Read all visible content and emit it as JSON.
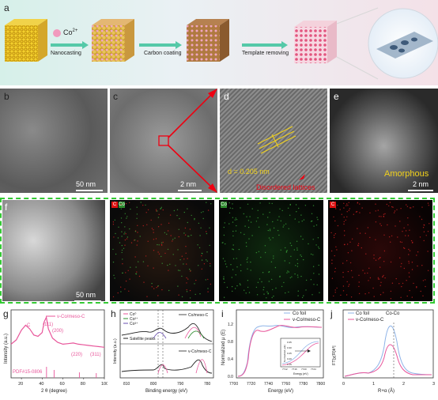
{
  "panels": {
    "a": "a",
    "b": "b",
    "c": "c",
    "d": "d",
    "e": "e",
    "f": "f",
    "g": "g",
    "h": "h",
    "i": "i",
    "j": "j"
  },
  "schematic": {
    "co_label": "Co",
    "co_charge": "2+",
    "steps": [
      "Nanocasting",
      "Carbon coating",
      "Template removing"
    ]
  },
  "tem": {
    "b_scale": "50 nm",
    "c_scale": "2 nm",
    "d_spacing": "d = 0.205 nm",
    "d_disorder": "Disordered lattices",
    "e_amorphous": "Amorphous",
    "e_scale": "2 nm",
    "f_scale": "50 nm"
  },
  "eds": {
    "co": "Co",
    "c": "C"
  },
  "colors": {
    "pink": "#e8559a",
    "green": "#2e8b2e",
    "red": "#d11",
    "purple": "#6a4fb0",
    "yellow": "#f2d21b",
    "dashgreen": "#34c934"
  },
  "chart_data": [
    {
      "type": "line",
      "panel": "g",
      "xlabel": "2 θ (degree)",
      "ylabel": "Intensity (a.u.)",
      "xlim": [
        10,
        100
      ],
      "xticks": [
        20,
        40,
        60,
        80,
        100
      ],
      "series": [
        {
          "name": "v-Co/meso-C",
          "x": [
            10,
            15,
            20,
            24,
            28,
            32,
            36,
            40,
            42,
            44,
            46,
            50,
            55,
            60,
            65,
            70,
            75,
            80,
            85,
            90,
            95,
            100
          ],
          "y": [
            0.55,
            0.62,
            0.78,
            0.86,
            0.8,
            0.7,
            0.68,
            0.74,
            0.92,
            0.99,
            0.8,
            0.65,
            0.58,
            0.55,
            0.56,
            0.57,
            0.55,
            0.54,
            0.53,
            0.52,
            0.51,
            0.5
          ]
        }
      ],
      "annotations": [
        "C",
        "(111)",
        "(200)",
        "(220)",
        "(311)"
      ],
      "reference": "PDF#15-0806"
    },
    {
      "type": "line",
      "panel": "h",
      "xlabel": "Binding energy (eV)",
      "ylabel": "Intensity (a.u.)",
      "xticks": [
        810,
        800,
        790,
        780
      ],
      "legend": [
        "Co⁰",
        "Co²⁺",
        "Co³⁺",
        "Satellite peaks"
      ],
      "series": [
        {
          "name": "Co/meso-C"
        },
        {
          "name": "v-Co/meso-C"
        }
      ]
    },
    {
      "type": "line",
      "panel": "i",
      "xlabel": "Energy (eV)",
      "ylabel": "Normalized μ (E)",
      "xticks": [
        7700,
        7720,
        7740,
        7760,
        7780,
        7800
      ],
      "yticks": [
        0.0,
        0.4,
        0.8,
        1.2
      ],
      "legend": [
        "Co foil",
        "v-Co/meso-C"
      ],
      "inset": {
        "xlabel": "Energy (eV)",
        "ylabel": "Normalized μ(E)",
        "xticks": [
          7712,
          7716,
          7720,
          7724
        ],
        "yticks": [
          0.15,
          0.2,
          0.25,
          0.3,
          0.35
        ]
      }
    },
    {
      "type": "line",
      "panel": "j",
      "xlabel": "R+α (Å)",
      "ylabel": "FT|χ(R)k³|",
      "xticks": [
        0,
        1,
        2,
        3
      ],
      "legend": [
        "Co foil",
        "v-Co/meso-C"
      ],
      "annotation": "Co-Co"
    }
  ]
}
